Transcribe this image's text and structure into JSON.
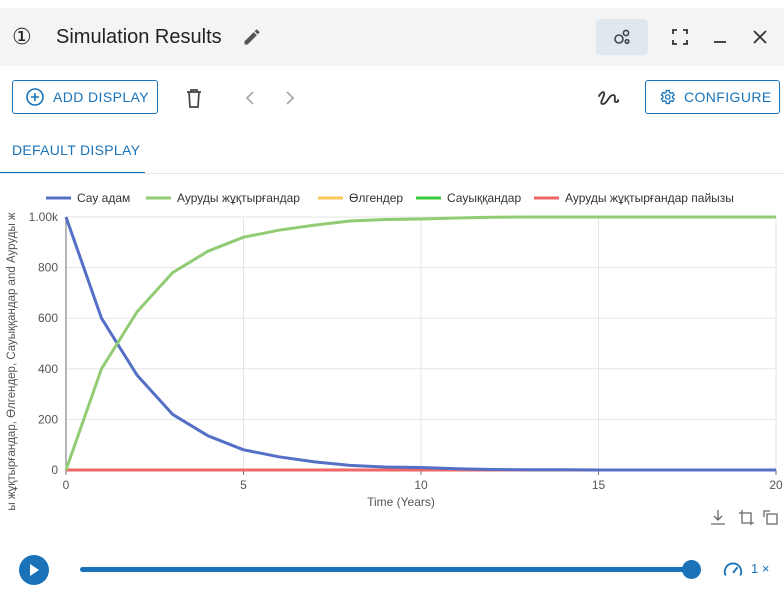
{
  "window": {
    "number": "①",
    "title": "Simulation Results"
  },
  "toolbar": {
    "add_display": "ADD DISPLAY",
    "configure": "CONFIGURE"
  },
  "tabs": [
    {
      "label": "DEFAULT DISPLAY",
      "active": true
    }
  ],
  "playback": {
    "speed": "1 ×",
    "progress": 1.0
  },
  "colors": {
    "accent": "#1a73b8"
  },
  "chart_data": {
    "type": "line",
    "xlabel": "Time (Years)",
    "ylabel": "ы жұқтырғандар, Өлгендер, Сауыққандар and Ауруды ж",
    "xlim": [
      0,
      20
    ],
    "ylim": [
      0,
      1000
    ],
    "x_ticks": [
      "0",
      "5",
      "10",
      "15",
      "20"
    ],
    "y_ticks": [
      "0",
      "200",
      "400",
      "600",
      "800",
      "1.00k"
    ],
    "legend_position": "top",
    "grid": true,
    "x": [
      0,
      1,
      2,
      3,
      4,
      5,
      6,
      7,
      8,
      9,
      10,
      11,
      12,
      13,
      14,
      15,
      16,
      17,
      18,
      19,
      20
    ],
    "series": [
      {
        "name": "Сау адам",
        "color": "#5470c6",
        "values": [
          1000,
          600,
          375,
          220,
          135,
          80,
          52,
          32,
          18,
          12,
          10,
          5,
          2,
          1,
          1,
          0,
          0,
          0,
          0,
          0,
          0
        ]
      },
      {
        "name": "Ауруды жұқтырғандар",
        "color": "#91cc75",
        "values": [
          0,
          400,
          625,
          780,
          865,
          920,
          948,
          968,
          984,
          990,
          992,
          996,
          999,
          1000,
          1000,
          1000,
          1000,
          1000,
          1000,
          1000,
          1000
        ]
      },
      {
        "name": "Өлгендер",
        "color": "#fac858",
        "values": [
          0,
          0,
          0,
          0,
          0,
          0,
          0,
          0,
          0,
          0,
          0,
          0,
          0,
          0,
          0,
          0,
          0,
          0,
          0,
          0,
          0
        ]
      },
      {
        "name": "Сауыққандар",
        "color": "#3ac93a",
        "values": [
          0,
          0,
          0,
          0,
          0,
          0,
          0,
          0,
          0,
          0,
          0,
          0,
          0,
          0,
          0,
          0,
          0,
          0,
          0,
          0,
          0
        ]
      },
      {
        "name": "Ауруды жұқтырғандар пайызы",
        "color": "#ee6666",
        "values": [
          0,
          0,
          0,
          0,
          0,
          0,
          0,
          0,
          0,
          0,
          0,
          0,
          0,
          0,
          0,
          0,
          0,
          0,
          0,
          0,
          0
        ]
      }
    ]
  }
}
